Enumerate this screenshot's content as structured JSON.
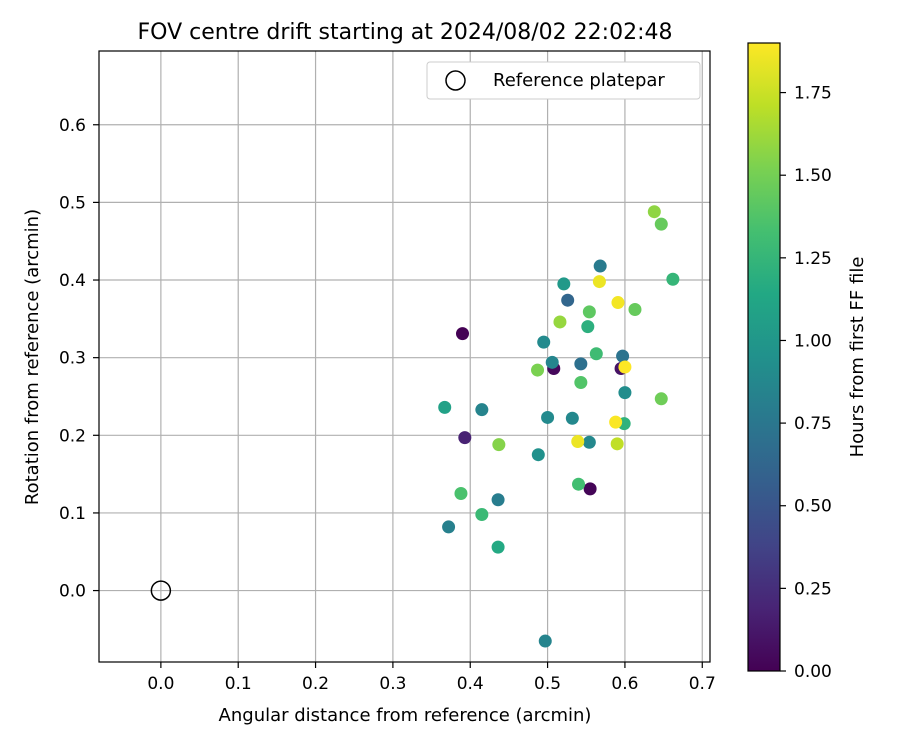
{
  "chart_data": {
    "type": "scatter",
    "title": "FOV centre drift starting at 2024/08/02 22:02:48",
    "xlabel": "Angular distance from reference (arcmin)",
    "ylabel": "Rotation from reference (arcmin)",
    "xlim": [
      -0.08,
      0.71
    ],
    "ylim": [
      -0.092,
      0.695
    ],
    "xticks": [
      0.0,
      0.1,
      0.2,
      0.3,
      0.4,
      0.5,
      0.6,
      0.7
    ],
    "xtick_labels": [
      "0.0",
      "0.1",
      "0.2",
      "0.3",
      "0.4",
      "0.5",
      "0.6",
      "0.7"
    ],
    "yticks": [
      0.0,
      0.1,
      0.2,
      0.3,
      0.4,
      0.5,
      0.6
    ],
    "ytick_labels": [
      "0.0",
      "0.1",
      "0.2",
      "0.3",
      "0.4",
      "0.5",
      "0.6"
    ],
    "grid": true,
    "legend": {
      "placement": "top-right",
      "label": "Reference platepar"
    },
    "reference_point": {
      "x": 0.0,
      "y": 0.0
    },
    "colorbar": {
      "label": "Hours from first FF file",
      "range": [
        0.0,
        1.9
      ],
      "colormap": "viridis",
      "ticks": [
        0.0,
        0.25,
        0.5,
        0.75,
        1.0,
        1.25,
        1.5,
        1.75
      ],
      "tick_labels": [
        "0.00",
        "0.25",
        "0.50",
        "0.75",
        "1.00",
        "1.25",
        "1.50",
        "1.75"
      ]
    },
    "points": [
      {
        "x": 0.39,
        "y": 0.331,
        "c": 0.0
      },
      {
        "x": 0.555,
        "y": 0.131,
        "c": 0.02
      },
      {
        "x": 0.508,
        "y": 0.286,
        "c": 0.04
      },
      {
        "x": 0.595,
        "y": 0.286,
        "c": 0.1
      },
      {
        "x": 0.393,
        "y": 0.197,
        "c": 0.18
      },
      {
        "x": 0.526,
        "y": 0.374,
        "c": 0.62
      },
      {
        "x": 0.543,
        "y": 0.292,
        "c": 0.7
      },
      {
        "x": 0.597,
        "y": 0.302,
        "c": 0.72
      },
      {
        "x": 0.568,
        "y": 0.418,
        "c": 0.78
      },
      {
        "x": 0.436,
        "y": 0.117,
        "c": 0.8
      },
      {
        "x": 0.372,
        "y": 0.082,
        "c": 0.82
      },
      {
        "x": 0.497,
        "y": -0.065,
        "c": 0.85
      },
      {
        "x": 0.415,
        "y": 0.233,
        "c": 0.85
      },
      {
        "x": 0.506,
        "y": 0.294,
        "c": 0.86
      },
      {
        "x": 0.554,
        "y": 0.191,
        "c": 0.88
      },
      {
        "x": 0.532,
        "y": 0.222,
        "c": 0.88
      },
      {
        "x": 0.5,
        "y": 0.223,
        "c": 0.9
      },
      {
        "x": 0.495,
        "y": 0.32,
        "c": 0.9
      },
      {
        "x": 0.6,
        "y": 0.255,
        "c": 0.92
      },
      {
        "x": 0.488,
        "y": 0.175,
        "c": 0.95
      },
      {
        "x": 0.521,
        "y": 0.395,
        "c": 1.02
      },
      {
        "x": 0.367,
        "y": 0.236,
        "c": 1.08
      },
      {
        "x": 0.436,
        "y": 0.056,
        "c": 1.15
      },
      {
        "x": 0.552,
        "y": 0.34,
        "c": 1.2
      },
      {
        "x": 0.599,
        "y": 0.215,
        "c": 1.22
      },
      {
        "x": 0.662,
        "y": 0.401,
        "c": 1.25
      },
      {
        "x": 0.415,
        "y": 0.098,
        "c": 1.28
      },
      {
        "x": 0.563,
        "y": 0.305,
        "c": 1.3
      },
      {
        "x": 0.54,
        "y": 0.137,
        "c": 1.32
      },
      {
        "x": 0.388,
        "y": 0.125,
        "c": 1.35
      },
      {
        "x": 0.543,
        "y": 0.268,
        "c": 1.38
      },
      {
        "x": 0.554,
        "y": 0.359,
        "c": 1.42
      },
      {
        "x": 0.613,
        "y": 0.362,
        "c": 1.45
      },
      {
        "x": 0.647,
        "y": 0.472,
        "c": 1.45
      },
      {
        "x": 0.647,
        "y": 0.247,
        "c": 1.48
      },
      {
        "x": 0.487,
        "y": 0.284,
        "c": 1.52
      },
      {
        "x": 0.437,
        "y": 0.188,
        "c": 1.55
      },
      {
        "x": 0.638,
        "y": 0.488,
        "c": 1.58
      },
      {
        "x": 0.516,
        "y": 0.346,
        "c": 1.6
      },
      {
        "x": 0.59,
        "y": 0.189,
        "c": 1.72
      },
      {
        "x": 0.539,
        "y": 0.192,
        "c": 1.85
      },
      {
        "x": 0.567,
        "y": 0.398,
        "c": 1.85
      },
      {
        "x": 0.591,
        "y": 0.371,
        "c": 1.87
      },
      {
        "x": 0.588,
        "y": 0.217,
        "c": 1.89
      },
      {
        "x": 0.6,
        "y": 0.288,
        "c": 1.9
      }
    ]
  }
}
